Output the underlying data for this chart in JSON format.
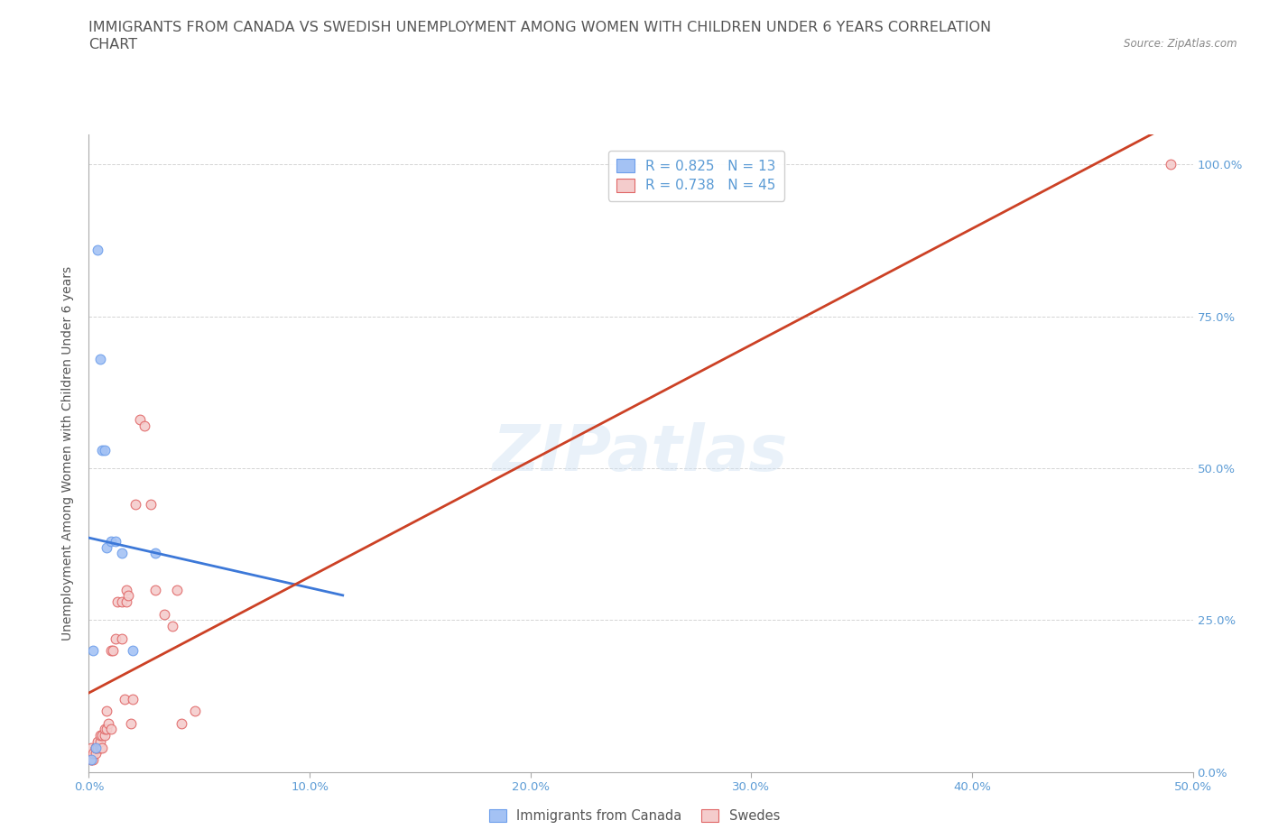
{
  "title_line1": "IMMIGRANTS FROM CANADA VS SWEDISH UNEMPLOYMENT AMONG WOMEN WITH CHILDREN UNDER 6 YEARS CORRELATION",
  "title_line2": "CHART",
  "source_text": "Source: ZipAtlas.com",
  "ylabel": "Unemployment Among Women with Children Under 6 years",
  "xlim": [
    0.0,
    0.5
  ],
  "ylim": [
    0.0,
    1.05
  ],
  "xticks": [
    0.0,
    0.1,
    0.2,
    0.3,
    0.4,
    0.5
  ],
  "yticks": [
    0.0,
    0.25,
    0.5,
    0.75,
    1.0
  ],
  "xticklabels": [
    "0.0%",
    "10.0%",
    "20.0%",
    "30.0%",
    "40.0%",
    "50.0%"
  ],
  "yticklabels_right": [
    "0.0%",
    "25.0%",
    "50.0%",
    "75.0%",
    "100.0%"
  ],
  "watermark": "ZIPatlas",
  "blue_fill": "#a4c2f4",
  "blue_edge": "#6d9eeb",
  "pink_fill": "#f4cccc",
  "pink_edge": "#e06666",
  "blue_line_color": "#3c78d8",
  "pink_line_color": "#cc4125",
  "legend_r_blue": "R = 0.825",
  "legend_n_blue": "N = 13",
  "legend_r_pink": "R = 0.738",
  "legend_n_pink": "N = 45",
  "legend_label_blue": "Immigrants from Canada",
  "legend_label_pink": "Swedes",
  "blue_x": [
    0.001,
    0.002,
    0.003,
    0.004,
    0.005,
    0.006,
    0.007,
    0.008,
    0.01,
    0.012,
    0.015,
    0.02,
    0.03
  ],
  "blue_y": [
    0.02,
    0.2,
    0.04,
    0.86,
    0.68,
    0.53,
    0.53,
    0.37,
    0.38,
    0.38,
    0.36,
    0.2,
    0.36
  ],
  "pink_x": [
    0.001,
    0.001,
    0.001,
    0.001,
    0.002,
    0.002,
    0.003,
    0.003,
    0.003,
    0.004,
    0.004,
    0.005,
    0.005,
    0.005,
    0.006,
    0.006,
    0.007,
    0.007,
    0.008,
    0.008,
    0.009,
    0.01,
    0.01,
    0.011,
    0.012,
    0.013,
    0.015,
    0.015,
    0.016,
    0.017,
    0.017,
    0.018,
    0.019,
    0.02,
    0.021,
    0.023,
    0.025,
    0.028,
    0.03,
    0.034,
    0.038,
    0.04,
    0.042,
    0.048,
    0.49
  ],
  "pink_y": [
    0.02,
    0.02,
    0.03,
    0.04,
    0.02,
    0.03,
    0.03,
    0.04,
    0.04,
    0.04,
    0.05,
    0.04,
    0.05,
    0.06,
    0.04,
    0.06,
    0.06,
    0.07,
    0.07,
    0.1,
    0.08,
    0.07,
    0.2,
    0.2,
    0.22,
    0.28,
    0.22,
    0.28,
    0.12,
    0.28,
    0.3,
    0.29,
    0.08,
    0.12,
    0.44,
    0.58,
    0.57,
    0.44,
    0.3,
    0.26,
    0.24,
    0.3,
    0.08,
    0.1,
    1.0
  ],
  "background_color": "#ffffff",
  "grid_color": "#d0d0d0",
  "tick_color": "#5b9bd5",
  "title_color": "#555555",
  "title_fontsize": 11.5,
  "axis_label_fontsize": 10,
  "tick_fontsize": 9.5,
  "marker_size": 60,
  "blue_line_x_end": 0.115,
  "pink_line_x_end": 0.5
}
